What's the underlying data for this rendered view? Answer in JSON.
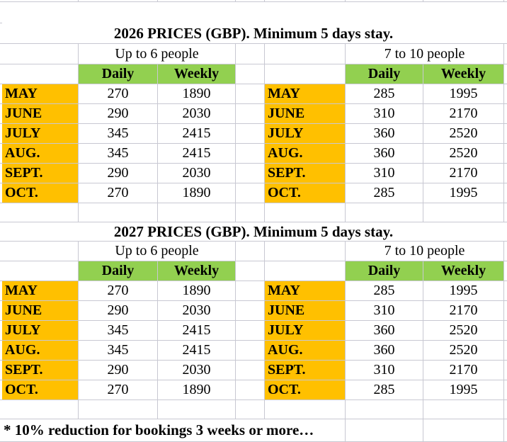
{
  "colors": {
    "orange": "#FFC000",
    "green": "#92D050",
    "grid": "#C8C8D2"
  },
  "tables": [
    {
      "title": "2026 PRICES (GBP). Minimum 5 days stay.",
      "left_group": "Up to 6 people",
      "right_group": "7 to 10 people",
      "col_daily": "Daily",
      "col_weekly": "Weekly",
      "left_rows": [
        {
          "month": "MAY",
          "daily": "270",
          "weekly": "1890"
        },
        {
          "month": "JUNE",
          "daily": "290",
          "weekly": "2030"
        },
        {
          "month": "JULY",
          "daily": "345",
          "weekly": "2415"
        },
        {
          "month": "AUG.",
          "daily": "345",
          "weekly": "2415"
        },
        {
          "month": "SEPT.",
          "daily": "290",
          "weekly": "2030"
        },
        {
          "month": "OCT.",
          "daily": "270",
          "weekly": "1890"
        }
      ],
      "right_rows": [
        {
          "month": "MAY",
          "daily": "285",
          "weekly": "1995"
        },
        {
          "month": "JUNE",
          "daily": "310",
          "weekly": "2170"
        },
        {
          "month": "JULY",
          "daily": "360",
          "weekly": "2520"
        },
        {
          "month": "AUG.",
          "daily": "360",
          "weekly": "2520"
        },
        {
          "month": "SEPT.",
          "daily": "310",
          "weekly": "2170"
        },
        {
          "month": "OCT.",
          "daily": "285",
          "weekly": "1995"
        }
      ]
    },
    {
      "title": "2027 PRICES (GBP). Minimum 5 days stay.",
      "left_group": "Up to 6 people",
      "right_group": "7 to 10 people",
      "col_daily": "Daily",
      "col_weekly": "Weekly",
      "left_rows": [
        {
          "month": "MAY",
          "daily": "270",
          "weekly": "1890"
        },
        {
          "month": "JUNE",
          "daily": "290",
          "weekly": "2030"
        },
        {
          "month": "JULY",
          "daily": "345",
          "weekly": "2415"
        },
        {
          "month": "AUG.",
          "daily": "345",
          "weekly": "2415"
        },
        {
          "month": "SEPT.",
          "daily": "290",
          "weekly": "2030"
        },
        {
          "month": "OCT.",
          "daily": "270",
          "weekly": "1890"
        }
      ],
      "right_rows": [
        {
          "month": "MAY",
          "daily": "285",
          "weekly": "1995"
        },
        {
          "month": "JUNE",
          "daily": "310",
          "weekly": "2170"
        },
        {
          "month": "JULY",
          "daily": "360",
          "weekly": "2520"
        },
        {
          "month": "AUG.",
          "daily": "360",
          "weekly": "2520"
        },
        {
          "month": "SEPT.",
          "daily": "310",
          "weekly": "2170"
        },
        {
          "month": "OCT.",
          "daily": "285",
          "weekly": "1995"
        }
      ]
    }
  ],
  "footer_note": "* 10% reduction for bookings 3 weeks or more…"
}
